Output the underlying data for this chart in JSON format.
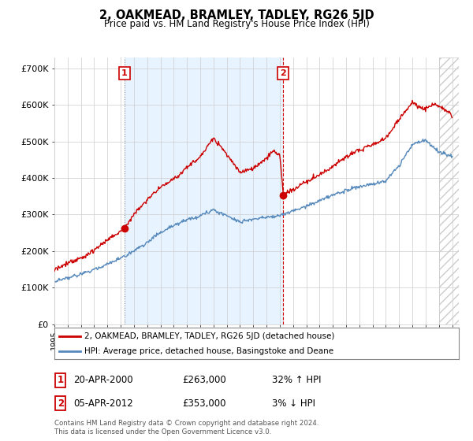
{
  "title": "2, OAKMEAD, BRAMLEY, TADLEY, RG26 5JD",
  "subtitle": "Price paid vs. HM Land Registry's House Price Index (HPI)",
  "ylabel_ticks": [
    "£0",
    "£100K",
    "£200K",
    "£300K",
    "£400K",
    "£500K",
    "£600K",
    "£700K"
  ],
  "ytick_values": [
    0,
    100000,
    200000,
    300000,
    400000,
    500000,
    600000,
    700000
  ],
  "ylim": [
    0,
    730000
  ],
  "xlim_start": 1995.0,
  "xlim_end": 2025.5,
  "legend_line1": "2, OAKMEAD, BRAMLEY, TADLEY, RG26 5JD (detached house)",
  "legend_line2": "HPI: Average price, detached house, Basingstoke and Deane",
  "annotation1_label": "1",
  "annotation1_date": "20-APR-2000",
  "annotation1_price": "£263,000",
  "annotation1_hpi": "32% ↑ HPI",
  "annotation2_label": "2",
  "annotation2_date": "05-APR-2012",
  "annotation2_price": "£353,000",
  "annotation2_hpi": "3% ↓ HPI",
  "footer1": "Contains HM Land Registry data © Crown copyright and database right 2024.",
  "footer2": "This data is licensed under the Open Government Licence v3.0.",
  "color_red": "#cc0000",
  "color_blue": "#5588bb",
  "color_grid": "#cccccc",
  "color_bg": "#ffffff",
  "color_shade": "#ddeeff",
  "sale1_year": 2000.27,
  "sale1_price": 263000,
  "sale2_year": 2012.27,
  "sale2_price": 353000
}
